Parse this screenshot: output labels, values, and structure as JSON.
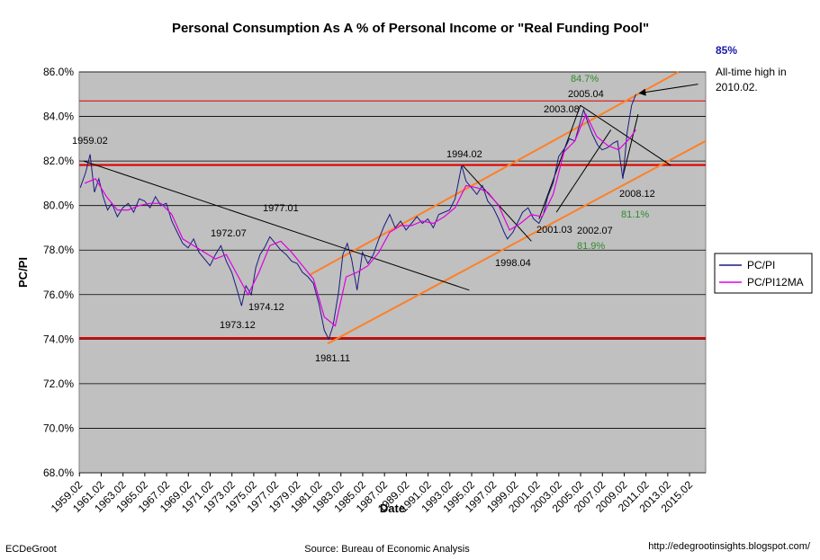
{
  "chart_data": {
    "type": "line",
    "title": "Personal Consumption As A % of Personal Income or \"Real Funding Pool\"",
    "xlabel": "Date",
    "ylabel": "PC/PI",
    "xlim": [
      1959.0,
      2016.5
    ],
    "ylim": [
      68,
      86
    ],
    "yticks": [
      "68.0%",
      "70.0%",
      "72.0%",
      "74.0%",
      "76.0%",
      "78.0%",
      "80.0%",
      "82.0%",
      "84.0%",
      "86.0%"
    ],
    "xticks": [
      "1959.02",
      "1961.02",
      "1963.02",
      "1965.02",
      "1967.02",
      "1969.02",
      "1971.02",
      "1973.02",
      "1975.02",
      "1977.02",
      "1979.02",
      "1981.02",
      "1983.02",
      "1985.02",
      "1987.02",
      "1989.02",
      "1991.02",
      "1993.02",
      "1995.02",
      "1997.02",
      "1999.02",
      "2001.02",
      "2003.02",
      "2005.02",
      "2007.02",
      "2009.02",
      "2011.02",
      "2013.02",
      "2015.02"
    ],
    "grid": true,
    "legend_position": "right",
    "series": [
      {
        "name": "PC/PI",
        "color": "#1a1a80",
        "x": [
          1959.1,
          1959.6,
          1960.0,
          1960.4,
          1960.8,
          1961.2,
          1961.6,
          1962.0,
          1962.5,
          1963.0,
          1963.5,
          1964.0,
          1964.5,
          1965.0,
          1965.5,
          1966.0,
          1966.5,
          1967.0,
          1967.5,
          1968.0,
          1968.5,
          1969.0,
          1969.5,
          1970.0,
          1970.5,
          1971.0,
          1971.5,
          1972.0,
          1972.5,
          1973.0,
          1973.5,
          1973.9,
          1974.3,
          1974.8,
          1975.2,
          1975.6,
          1976.0,
          1976.5,
          1977.0,
          1977.5,
          1978.0,
          1978.5,
          1979.0,
          1979.5,
          1980.0,
          1980.5,
          1981.0,
          1981.5,
          1981.9,
          1982.3,
          1982.8,
          1983.2,
          1983.6,
          1984.0,
          1984.5,
          1985.0,
          1985.5,
          1986.0,
          1986.5,
          1987.0,
          1987.5,
          1988.0,
          1988.5,
          1989.0,
          1989.5,
          1990.0,
          1990.5,
          1991.0,
          1991.5,
          1992.0,
          1992.5,
          1993.0,
          1993.5,
          1994.1,
          1994.5,
          1995.0,
          1995.5,
          1996.0,
          1996.5,
          1997.0,
          1997.5,
          1998.0,
          1998.3,
          1998.8,
          1999.2,
          1999.7,
          2000.2,
          2000.7,
          2001.2,
          2001.6,
          2002.0,
          2002.5,
          2003.0,
          2003.6,
          2004.0,
          2004.5,
          2004.9,
          2005.3,
          2005.7,
          2006.1,
          2006.6,
          2007.0,
          2007.5,
          2008.0,
          2008.4,
          2008.9,
          2009.3,
          2009.7,
          2010.1
        ],
        "y": [
          80.8,
          81.5,
          82.3,
          80.6,
          81.2,
          80.4,
          79.8,
          80.1,
          79.5,
          79.9,
          80.1,
          79.7,
          80.3,
          80.2,
          79.9,
          80.4,
          80.0,
          80.1,
          79.3,
          78.8,
          78.3,
          78.1,
          78.5,
          77.9,
          77.6,
          77.3,
          77.8,
          78.2,
          77.5,
          77.0,
          76.2,
          75.5,
          76.4,
          76.0,
          77.2,
          77.8,
          78.1,
          78.6,
          78.3,
          78.0,
          77.8,
          77.5,
          77.4,
          77.0,
          76.8,
          76.5,
          75.6,
          74.4,
          74.0,
          74.6,
          76.1,
          77.8,
          78.3,
          77.6,
          76.2,
          77.9,
          77.4,
          77.8,
          78.5,
          79.1,
          79.6,
          79.0,
          79.3,
          78.9,
          79.2,
          79.5,
          79.2,
          79.4,
          79.0,
          79.6,
          79.7,
          79.8,
          80.3,
          81.8,
          81.1,
          80.8,
          80.5,
          80.9,
          80.2,
          79.9,
          79.4,
          78.8,
          78.5,
          78.8,
          79.2,
          79.7,
          79.9,
          79.4,
          79.2,
          79.6,
          80.4,
          81.0,
          82.2,
          82.6,
          83.0,
          82.9,
          83.6,
          84.3,
          83.7,
          83.2,
          82.7,
          82.5,
          82.6,
          82.8,
          82.9,
          81.2,
          83.3,
          84.5,
          85.0
        ]
      },
      {
        "name": "PC/PI12MA",
        "color": "#e000e0",
        "x": [
          1959.5,
          1960.5,
          1961.5,
          1962.5,
          1963.5,
          1964.5,
          1965.5,
          1966.5,
          1967.5,
          1968.5,
          1969.5,
          1970.5,
          1971.5,
          1972.5,
          1973.5,
          1974.5,
          1975.5,
          1976.5,
          1977.5,
          1978.5,
          1979.5,
          1980.5,
          1981.5,
          1982.5,
          1983.5,
          1984.5,
          1985.5,
          1986.5,
          1987.5,
          1988.5,
          1989.5,
          1990.5,
          1991.5,
          1992.5,
          1993.5,
          1994.5,
          1995.5,
          1996.5,
          1997.5,
          1998.5,
          1999.5,
          2000.5,
          2001.5,
          2002.5,
          2003.5,
          2004.5,
          2005.5,
          2006.5,
          2007.5,
          2008.5,
          2009.5,
          2010.1
        ],
        "y": [
          81.0,
          81.2,
          80.4,
          79.8,
          79.8,
          80.0,
          80.1,
          80.1,
          79.6,
          78.5,
          78.2,
          77.9,
          77.6,
          77.8,
          76.9,
          76.0,
          77.0,
          78.2,
          78.4,
          77.9,
          77.3,
          76.7,
          75.0,
          74.6,
          76.8,
          77.0,
          77.3,
          77.9,
          78.8,
          79.1,
          79.1,
          79.3,
          79.2,
          79.5,
          79.9,
          80.9,
          80.8,
          80.6,
          80.0,
          78.9,
          79.2,
          79.6,
          79.5,
          80.5,
          82.4,
          82.9,
          84.1,
          83.1,
          82.7,
          82.5,
          83.0,
          83.4
        ]
      }
    ],
    "annotations": [
      "1959.02",
      "1977.01",
      "1972.07",
      "1974.12",
      "1973.12",
      "1981.11",
      "1994.02",
      "1998.04",
      "2001.03",
      "2002.07",
      "2003.08",
      "2005.04",
      "2008.12",
      "84.7%",
      "81.1%",
      "81.9%",
      "85%",
      "All-time high in",
      "2010.02."
    ]
  },
  "labels": {
    "xlabel": "Date",
    "ylabel": "PC/PI",
    "footer_left": "ECDeGroot",
    "footer_center": "Source:  Bureau of Economic Analysis",
    "footer_right": "http://edegrootinsights.blogspot.com/",
    "legend_1": "PC/PI",
    "legend_2": "PC/PI12MA"
  },
  "colors": {
    "plot_bg": "#c0c0c0",
    "hline_red": "#e00000",
    "channel_orange": "#ff7f27",
    "trend_black": "#000000"
  }
}
